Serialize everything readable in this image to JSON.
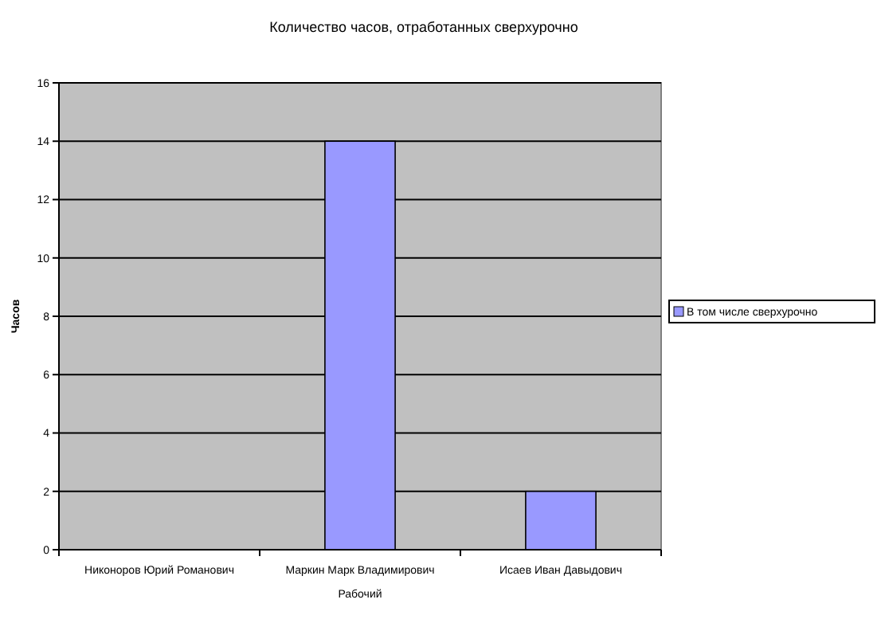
{
  "chart_data": {
    "type": "bar",
    "title": "Количество часов, отработанных сверхурочно",
    "xlabel": "Рабочий",
    "ylabel": "Часов",
    "categories": [
      "Никоноров Юрий Романович",
      "Маркин Марк Владимирович",
      "Исаев Иван Давыдович"
    ],
    "series": [
      {
        "name": "В том числе сверхурочно",
        "color": "#9999ff",
        "values": [
          0,
          14,
          2
        ]
      }
    ],
    "ylim": [
      0,
      16
    ],
    "yticks": [
      0,
      2,
      4,
      6,
      8,
      10,
      12,
      14,
      16
    ],
    "grid": "y",
    "legend": "right"
  }
}
